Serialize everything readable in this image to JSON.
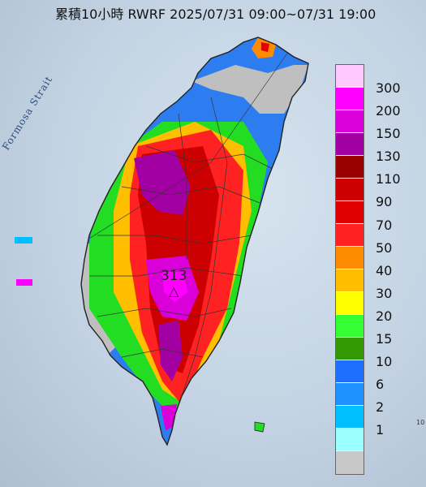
{
  "title": "累積10小時 RWRF 2025/07/31 09:00~07/31 19:00",
  "map": {
    "strait_label": "Formosa Strait",
    "peak_value": "313",
    "peak_marker": "△",
    "corner_mark": "10"
  },
  "legend": {
    "colors": [
      "#ffc8ff",
      "#ff00ff",
      "#d900d9",
      "#a300a3",
      "#990000",
      "#cc0000",
      "#e00000",
      "#ff2222",
      "#ff8c00",
      "#ffbf00",
      "#ffff00",
      "#33ff33",
      "#339900",
      "#1f6fff",
      "#1e90ff",
      "#00bfff",
      "#99ffff",
      "#c8c8c8"
    ],
    "labels": [
      "300",
      "200",
      "150",
      "130",
      "110",
      "90",
      "70",
      "50",
      "40",
      "30",
      "20",
      "15",
      "10",
      "6",
      "2",
      "1"
    ]
  }
}
